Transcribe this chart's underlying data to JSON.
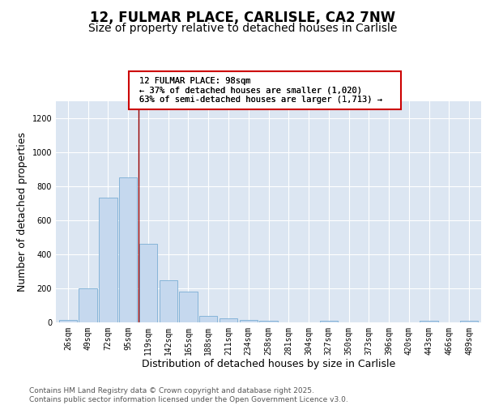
{
  "title": "12, FULMAR PLACE, CARLISLE, CA2 7NW",
  "subtitle": "Size of property relative to detached houses in Carlisle",
  "xlabel": "Distribution of detached houses by size in Carlisle",
  "ylabel": "Number of detached properties",
  "background_color": "#dce6f2",
  "bar_color": "#c5d8ee",
  "bar_edge_color": "#7aadd4",
  "vline_color": "#990000",
  "annotation_text": "12 FULMAR PLACE: 98sqm\n← 37% of detached houses are smaller (1,020)\n63% of semi-detached houses are larger (1,713) →",
  "annotation_box_edge": "#cc0000",
  "categories": [
    "26sqm",
    "49sqm",
    "72sqm",
    "95sqm",
    "119sqm",
    "142sqm",
    "165sqm",
    "188sqm",
    "211sqm",
    "234sqm",
    "258sqm",
    "281sqm",
    "304sqm",
    "327sqm",
    "350sqm",
    "373sqm",
    "396sqm",
    "420sqm",
    "443sqm",
    "466sqm",
    "489sqm"
  ],
  "values": [
    12,
    200,
    730,
    850,
    460,
    245,
    178,
    35,
    20,
    12,
    5,
    0,
    0,
    8,
    0,
    0,
    0,
    0,
    8,
    0,
    8
  ],
  "vline_x_index": 3.5,
  "ylim": [
    0,
    1300
  ],
  "yticks": [
    0,
    200,
    400,
    600,
    800,
    1000,
    1200
  ],
  "footer_line1": "Contains HM Land Registry data © Crown copyright and database right 2025.",
  "footer_line2": "Contains public sector information licensed under the Open Government Licence v3.0.",
  "title_fontsize": 12,
  "subtitle_fontsize": 10,
  "tick_fontsize": 7,
  "axis_label_fontsize": 9,
  "footer_fontsize": 6.5
}
